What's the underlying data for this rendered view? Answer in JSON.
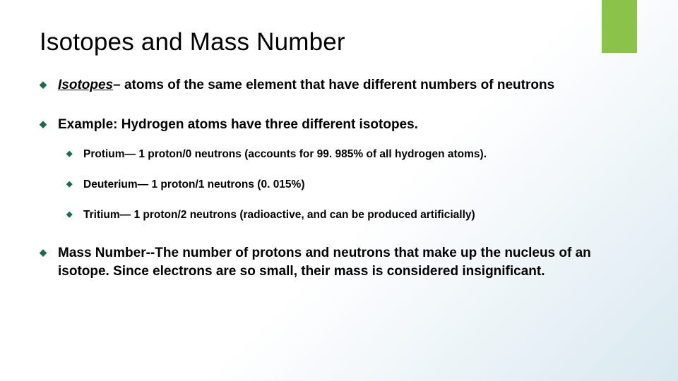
{
  "accent_color": "#8bc34a",
  "bullet_color": "#1a6b4a",
  "title": "Isotopes and Mass Number",
  "bullets": [
    {
      "term": "Isotopes",
      "rest": "– atoms of the same element that have different numbers of neutrons"
    },
    {
      "text": "Example: Hydrogen atoms have three different isotopes.",
      "sub": [
        "Protium— 1 proton/0 neutrons (accounts for 99. 985% of all hydrogen atoms).",
        "Deuterium— 1 proton/1 neutrons (0. 015%)",
        "Tritium— 1 proton/2 neutrons (radioactive, and can be produced artificially)"
      ]
    },
    {
      "text": "Mass Number--The number of protons and neutrons that make up the nucleus of an isotope. Since electrons are so small, their mass is considered insignificant."
    }
  ]
}
